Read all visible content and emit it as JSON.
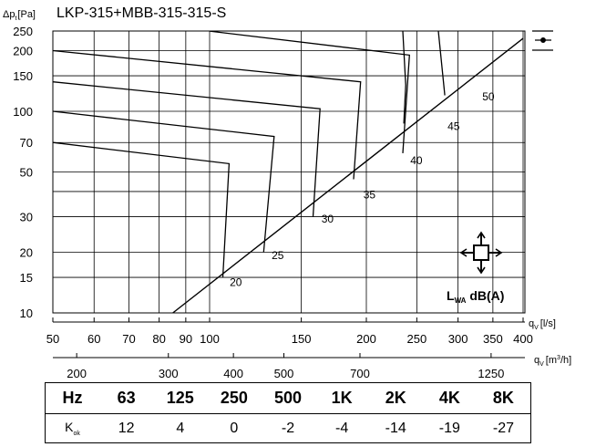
{
  "chart_data": {
    "type": "line",
    "title": "LKP-315+MBB-315-315-S",
    "ylabel": {
      "main": "Δp",
      "sub": "t",
      "unit": "[Pa]"
    },
    "xlabel_ls": {
      "main": "q",
      "sub": "V",
      "unit": "[l/s]"
    },
    "xlabel_m3h": {
      "main": "q",
      "sub": "V",
      "unit": "[m",
      "sup": "3",
      "unit_end": "/h]"
    },
    "y_scale": "log",
    "x_scale": "log",
    "ylim": [
      10,
      250
    ],
    "xlim_ls": [
      50,
      400
    ],
    "y_ticks": [
      10,
      15,
      20,
      30,
      50,
      70,
      100,
      150,
      200,
      250
    ],
    "y_tick_labels": [
      "10",
      "15",
      "20",
      "30",
      "50",
      "70",
      "100",
      "150",
      "200",
      "250"
    ],
    "x_ticks_ls": [
      50,
      60,
      70,
      80,
      90,
      100,
      150,
      200,
      250,
      300,
      350,
      400
    ],
    "x_tick_labels_ls": [
      "50",
      "60",
      "70",
      "80",
      "90",
      "100",
      "150",
      "200",
      "250",
      "300",
      "350",
      "400"
    ],
    "x_ticks_m3h": [
      200,
      300,
      400,
      500,
      700,
      1250
    ],
    "x_tick_labels_m3h": [
      "200",
      "300",
      "400",
      "500",
      "700",
      "1250"
    ],
    "grid": true,
    "curves": [
      {
        "points": [
          [
            50,
            70
          ],
          [
            109,
            55
          ],
          [
            106,
            15
          ]
        ]
      },
      {
        "points": [
          [
            50,
            100
          ],
          [
            133,
            75
          ],
          [
            127,
            20
          ]
        ]
      },
      {
        "points": [
          [
            50,
            140
          ],
          [
            163,
            103
          ],
          [
            158,
            30
          ]
        ]
      },
      {
        "points": [
          [
            50,
            200
          ],
          [
            195,
            140
          ],
          [
            189,
            46
          ]
        ]
      },
      {
        "points": [
          [
            100,
            250
          ],
          [
            242,
            190
          ],
          [
            235,
            62
          ]
        ]
      },
      {
        "points": [
          [
            235,
            250
          ],
          [
            238,
            135
          ],
          [
            236,
            87
          ]
        ]
      },
      {
        "points": [
          [
            275,
            250
          ],
          [
            283,
            120
          ]
        ]
      }
    ],
    "sound_line": {
      "points": [
        [
          85,
          10
        ],
        [
          400,
          230
        ]
      ]
    },
    "sound_labels": [
      {
        "text": "20",
        "x": 108,
        "y": 14.2
      },
      {
        "text": "25",
        "x": 130,
        "y": 19.3
      },
      {
        "text": "30",
        "x": 162,
        "y": 29.3
      },
      {
        "text": "35",
        "x": 195,
        "y": 38.5
      },
      {
        "text": "40",
        "x": 240,
        "y": 57
      },
      {
        "text": "45",
        "x": 283,
        "y": 84
      },
      {
        "text": "50",
        "x": 330,
        "y": 118
      }
    ],
    "lwa_label": {
      "main": "L",
      "sub": "WA",
      "rest": " dB(A)"
    },
    "icons": [
      "four-way-arrows-icon",
      "damper-symbol-icon"
    ]
  },
  "table": {
    "header_label": "Hz",
    "frequencies": [
      "63",
      "125",
      "250",
      "500",
      "1K",
      "2K",
      "4K",
      "8K"
    ],
    "kok_label": {
      "main": "K",
      "sub": "ok"
    },
    "kok_values": [
      "12",
      "4",
      "0",
      "-2",
      "-4",
      "-14",
      "-19",
      "-27"
    ]
  }
}
